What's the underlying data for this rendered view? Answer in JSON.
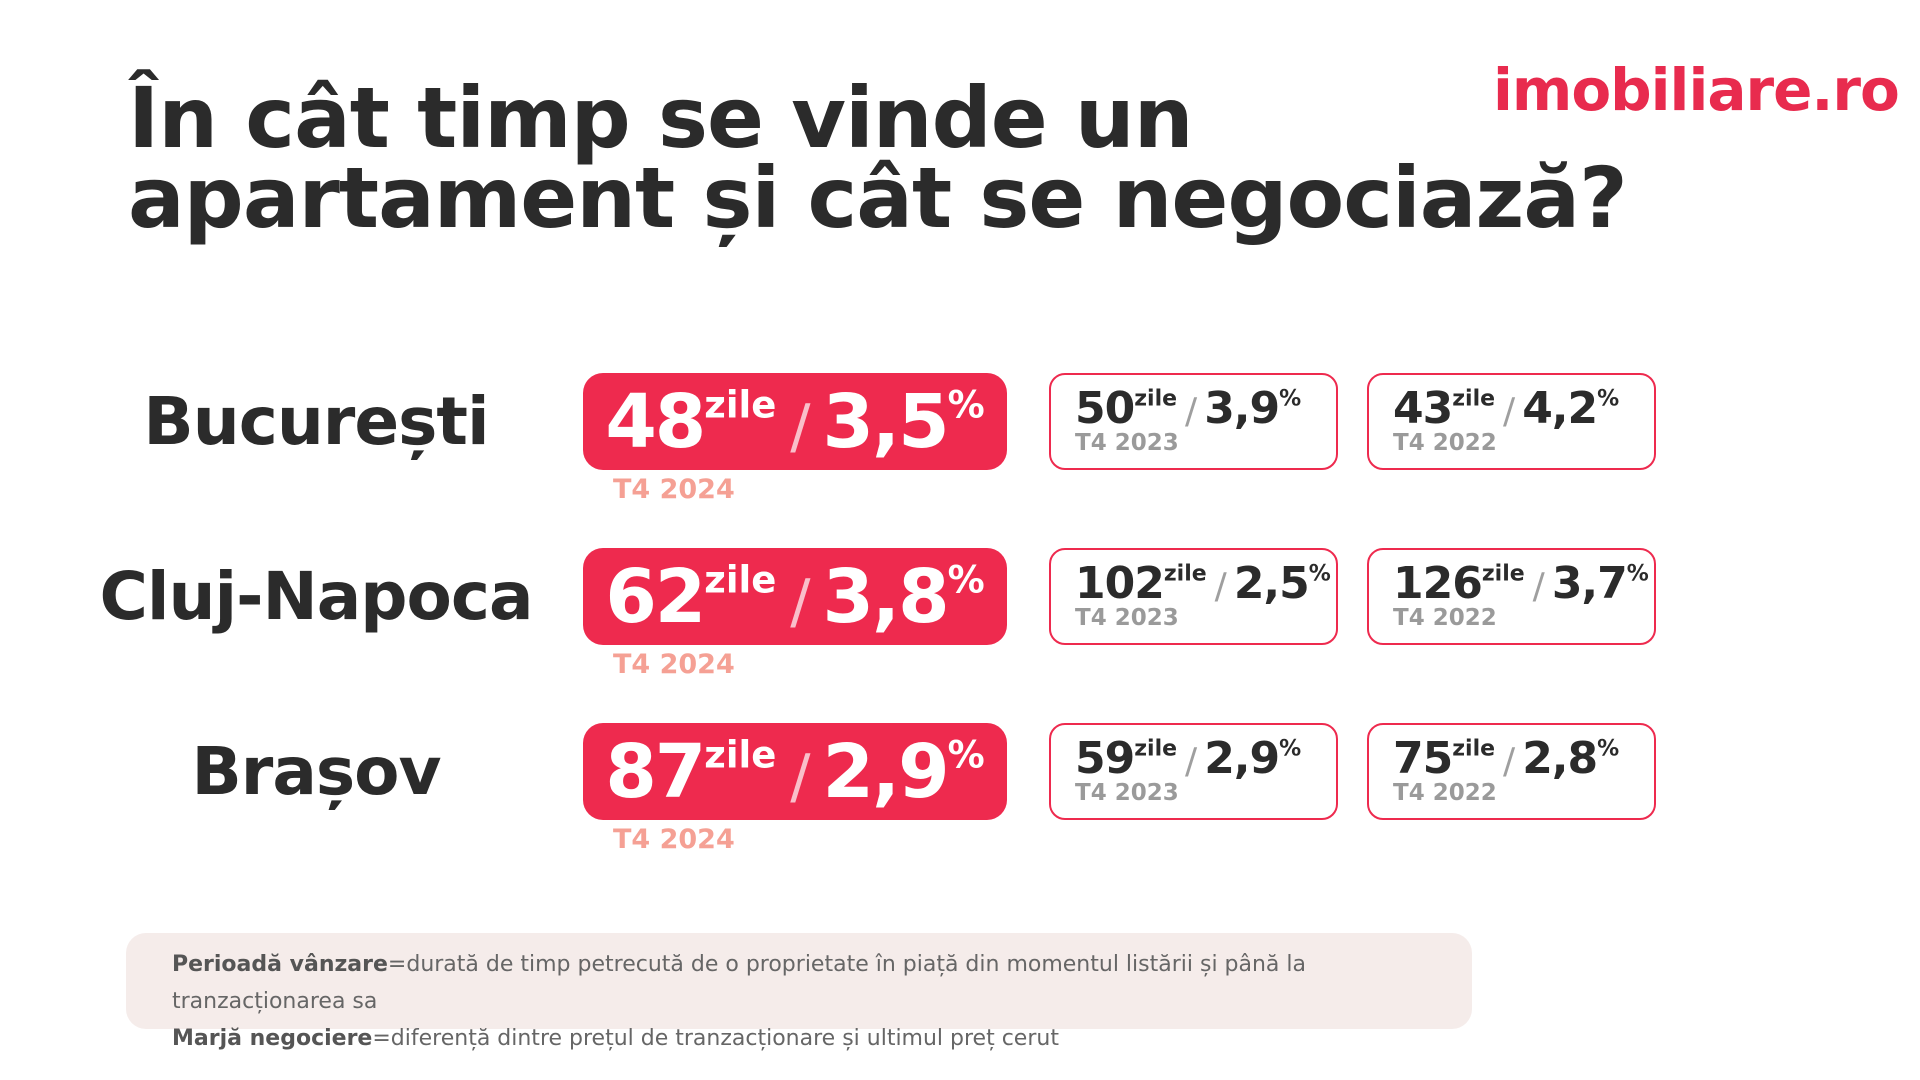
{
  "title": {
    "line1": "În cât timp se vinde un",
    "line2": "apartament și cât se negociază?"
  },
  "logo": {
    "text": "imobiliare.ro"
  },
  "colors": {
    "accent": "#ee2a4e",
    "current_year_label": "#f5a094",
    "text": "#2b2b2b"
  },
  "unit_days": "zile",
  "unit_percent": "%",
  "separator": "/",
  "rows": [
    {
      "city": "București",
      "current": {
        "days": "48",
        "margin": "3,5",
        "period": "T4 2024"
      },
      "prev": [
        {
          "days": "50",
          "margin": "3,9",
          "period": "T4 2023"
        },
        {
          "days": "43",
          "margin": "4,2",
          "period": "T4 2022"
        }
      ]
    },
    {
      "city": "Cluj-Napoca",
      "current": {
        "days": "62",
        "margin": "3,8",
        "period": "T4 2024"
      },
      "prev": [
        {
          "days": "102",
          "margin": "2,5",
          "period": "T4 2023"
        },
        {
          "days": "126",
          "margin": "3,7",
          "period": "T4 2022"
        }
      ]
    },
    {
      "city": "Brașov",
      "current": {
        "days": "87",
        "margin": "2,9",
        "period": "T4 2024"
      },
      "prev": [
        {
          "days": "59",
          "margin": "2,9",
          "period": "T4 2023"
        },
        {
          "days": "75",
          "margin": "2,8",
          "period": "T4 2022"
        }
      ]
    }
  ],
  "footnote": [
    {
      "term": "Perioadă vânzare",
      "definition": "=durată de timp petrecută de o proprietate în piață din momentul listării și până la tranzacționarea sa"
    },
    {
      "term": "Marjă negociere",
      "definition": "=diferență dintre prețul de tranzacționare și ultimul preț cerut"
    }
  ]
}
